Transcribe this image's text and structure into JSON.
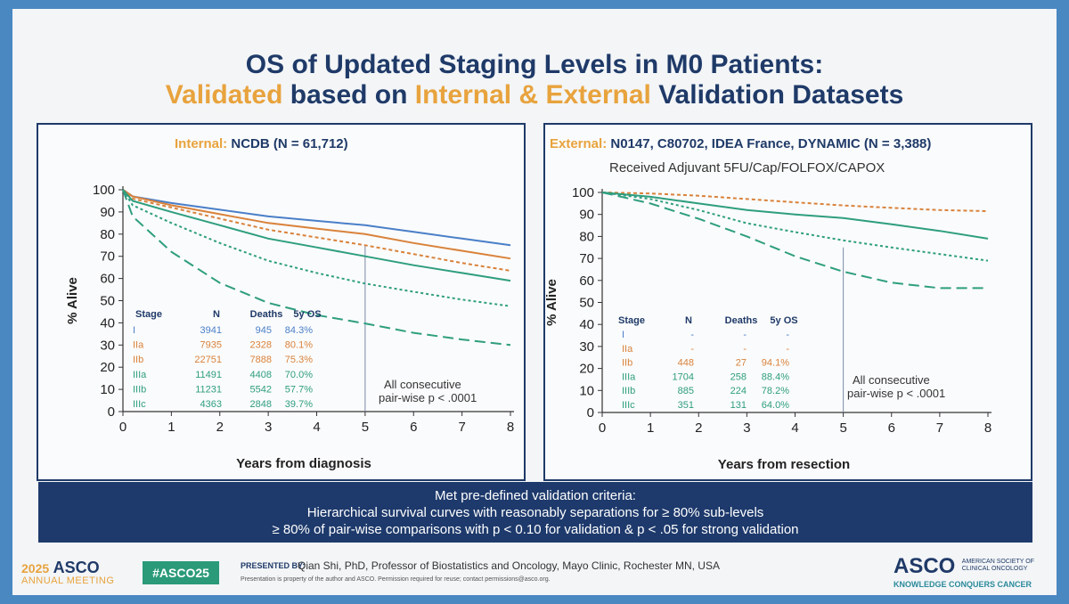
{
  "title": {
    "line1": "OS of Updated Staging Levels in M0 Patients:",
    "line2_a": "Validated",
    "line2_b": " based on ",
    "line2_c": "Internal & External",
    "line2_d": " Validation Datasets"
  },
  "colors": {
    "I": "#4a7fc8",
    "IIa": "#d9823b",
    "IIb": "#d9823b",
    "IIIa": "#2e9e7e",
    "IIIb": "#2e9e7e",
    "IIIc": "#2e9e7e"
  },
  "banner": [
    "Met pre-defined validation criteria:",
    "Hierarchical survival curves with reasonably separations for ≥ 80% sub-levels",
    "≥ 80% of pair-wise comparisons with p < 0.10 for validation & p < .05 for strong validation"
  ],
  "footer": {
    "asco_year": "2025",
    "asco_name": "ASCO",
    "asco_sub": "ANNUAL MEETING",
    "hashtag": "#ASCO25",
    "presented_by_label": "PRESENTED BY:",
    "presenter": "Qian Shi, PhD, Professor of Biostatistics and Oncology, Mayo Clinic, Rochester MN, USA",
    "disclaimer": "Presentation is property of the author and ASCO. Permission required for reuse; contact permissions@asco.org.",
    "logo_text": "ASCO",
    "logo_small1": "AMERICAN SOCIETY OF",
    "logo_small2": "CLINICAL ONCOLOGY",
    "tagline": "KNOWLEDGE CONQUERS CANCER"
  },
  "chart_data": [
    {
      "type": "line",
      "title_label": "Internal:",
      "title_rest": " NCDB (N = 61,712)",
      "subtitle": "",
      "xlabel": "Years from diagnosis",
      "ylabel": "% Alive",
      "xlim": [
        0,
        8
      ],
      "ylim": [
        0,
        100
      ],
      "xticks": [
        0,
        1,
        2,
        3,
        4,
        5,
        6,
        7,
        8
      ],
      "yticks": [
        0,
        10,
        20,
        30,
        40,
        50,
        60,
        70,
        80,
        90,
        100
      ],
      "vline_x": 5,
      "annotation": [
        "All consecutive",
        "pair-wise p < .0001"
      ],
      "table": {
        "headers": [
          "Stage",
          "N",
          "Deaths",
          "5y OS"
        ],
        "rows": [
          [
            "I",
            "3941",
            "945",
            "84.3%"
          ],
          [
            "IIa",
            "7935",
            "2328",
            "80.1%"
          ],
          [
            "IIb",
            "22751",
            "7888",
            "75.3%"
          ],
          [
            "IIIa",
            "11491",
            "4408",
            "70.0%"
          ],
          [
            "IIIb",
            "11231",
            "5542",
            "57.7%"
          ],
          [
            "IIIc",
            "4363",
            "2848",
            "39.7%"
          ]
        ]
      },
      "series": [
        {
          "name": "I",
          "x": [
            0,
            0.2,
            1,
            2,
            3,
            4,
            5,
            6,
            7,
            8
          ],
          "values": [
            100,
            97,
            94,
            91,
            88,
            86,
            84,
            81,
            78,
            75
          ]
        },
        {
          "name": "IIa",
          "x": [
            0,
            0.2,
            1,
            2,
            3,
            4,
            5,
            6,
            7,
            8
          ],
          "values": [
            100,
            97,
            93,
            89,
            85,
            82.5,
            80,
            76,
            72.5,
            69
          ]
        },
        {
          "name": "IIb",
          "x": [
            0,
            0.2,
            1,
            2,
            3,
            4,
            5,
            6,
            7,
            8
          ],
          "values": [
            100,
            96,
            92,
            87,
            82,
            78.5,
            75,
            71,
            67,
            63.5
          ]
        },
        {
          "name": "IIIa",
          "x": [
            0,
            0.2,
            1,
            2,
            3,
            4,
            5,
            6,
            7,
            8
          ],
          "values": [
            100,
            95,
            90,
            84,
            78,
            74,
            70,
            66,
            62.5,
            59
          ]
        },
        {
          "name": "IIIb",
          "x": [
            0,
            0.2,
            1,
            2,
            3,
            4,
            5,
            6,
            7,
            8
          ],
          "values": [
            100,
            93,
            85,
            76,
            68,
            62.5,
            57.7,
            54,
            50.5,
            47.5
          ]
        },
        {
          "name": "IIIc",
          "x": [
            0,
            0.2,
            1,
            2,
            3,
            4,
            5,
            6,
            7,
            8
          ],
          "values": [
            100,
            88,
            72,
            58,
            49,
            43.5,
            39.7,
            35.5,
            32.5,
            30
          ]
        }
      ]
    },
    {
      "type": "line",
      "title_label": "External:",
      "title_rest": " N0147, C80702, IDEA France, DYNAMIC (N = 3,388)",
      "subtitle": "Received Adjuvant 5FU/Cap/FOLFOX/CAPOX",
      "xlabel": "Years from resection",
      "ylabel": "% Alive",
      "xlim": [
        0,
        8
      ],
      "ylim": [
        0,
        100
      ],
      "xticks": [
        0,
        1,
        2,
        3,
        4,
        5,
        6,
        7,
        8
      ],
      "yticks": [
        0,
        10,
        20,
        30,
        40,
        50,
        60,
        70,
        80,
        90,
        100
      ],
      "vline_x": 5,
      "annotation": [
        "All consecutive",
        "pair-wise p < .0001"
      ],
      "table": {
        "headers": [
          "Stage",
          "N",
          "Deaths",
          "5y OS"
        ],
        "rows": [
          [
            "I",
            "-",
            "-",
            "-"
          ],
          [
            "IIa",
            "-",
            "-",
            "-"
          ],
          [
            "IIb",
            "448",
            "27",
            "94.1%"
          ],
          [
            "IIIa",
            "1704",
            "258",
            "88.4%"
          ],
          [
            "IIIb",
            "885",
            "224",
            "78.2%"
          ],
          [
            "IIIc",
            "351",
            "131",
            "64.0%"
          ]
        ]
      },
      "series": [
        {
          "name": "IIb",
          "x": [
            0,
            1,
            2,
            3,
            4,
            5,
            6,
            7,
            8
          ],
          "values": [
            100,
            99.5,
            98.5,
            97,
            95.5,
            94.1,
            93,
            92,
            91.5
          ]
        },
        {
          "name": "IIIa",
          "x": [
            0,
            1,
            2,
            3,
            4,
            5,
            6,
            7,
            8
          ],
          "values": [
            100,
            98,
            95,
            92,
            90,
            88.4,
            85.5,
            82.5,
            79
          ]
        },
        {
          "name": "IIIb",
          "x": [
            0,
            1,
            2,
            3,
            4,
            5,
            6,
            7,
            8
          ],
          "values": [
            100,
            97,
            92,
            86,
            82,
            78.2,
            75,
            72,
            69
          ]
        },
        {
          "name": "IIIc",
          "x": [
            0,
            1,
            2,
            3,
            4,
            5,
            6,
            7,
            8
          ],
          "values": [
            100,
            95,
            88,
            80,
            71,
            64,
            59,
            56.5,
            56.5
          ]
        }
      ]
    }
  ]
}
